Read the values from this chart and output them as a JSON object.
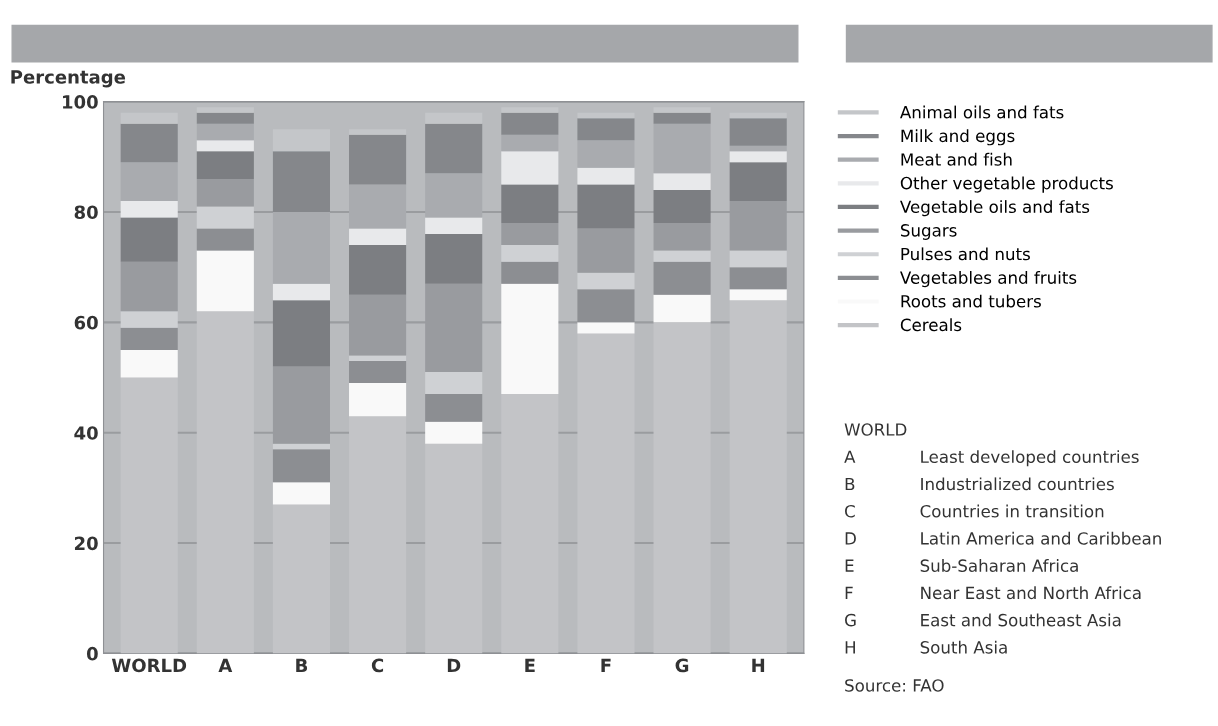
{
  "chart_data": {
    "type": "bar",
    "stacked": true,
    "ylabel": "Percentage",
    "categories": [
      "WORLD",
      "A",
      "B",
      "C",
      "D",
      "E",
      "F",
      "G",
      "H"
    ],
    "series": [
      {
        "name": "Cereals",
        "color": "#c3c4c7",
        "values": [
          50,
          62,
          27,
          43,
          38,
          47,
          58,
          60,
          64
        ]
      },
      {
        "name": "Roots and tubers",
        "color": "#f9f9f9",
        "values": [
          5,
          11,
          4,
          6,
          4,
          20,
          2,
          5,
          2
        ]
      },
      {
        "name": "Vegetables and fruits",
        "color": "#8c8e92",
        "values": [
          4,
          4,
          6,
          4,
          5,
          4,
          6,
          6,
          4
        ]
      },
      {
        "name": "Pulses and nuts",
        "color": "#cfd1d4",
        "values": [
          3,
          4,
          1,
          1,
          4,
          3,
          3,
          2,
          3
        ]
      },
      {
        "name": "Sugars",
        "color": "#999b9f",
        "values": [
          9,
          5,
          14,
          11,
          16,
          4,
          8,
          5,
          9
        ]
      },
      {
        "name": "Vegetable oils and fats",
        "color": "#7c7e82",
        "values": [
          8,
          5,
          12,
          9,
          9,
          7,
          8,
          6,
          7
        ]
      },
      {
        "name": "Other vegetable products",
        "color": "#e8e9eb",
        "values": [
          3,
          2,
          3,
          3,
          3,
          6,
          3,
          3,
          2
        ]
      },
      {
        "name": "Meat and fish",
        "color": "#a9abaf",
        "values": [
          7,
          3,
          13,
          8,
          8,
          3,
          5,
          9,
          1
        ]
      },
      {
        "name": "Milk and eggs",
        "color": "#85878b",
        "values": [
          7,
          2,
          11,
          9,
          9,
          4,
          4,
          2,
          5
        ]
      },
      {
        "name": "Animal oils and fats",
        "color": "#c4c6c9",
        "values": [
          2,
          1,
          4,
          1,
          2,
          1,
          1,
          1,
          1
        ]
      }
    ],
    "ylim": [
      0,
      100
    ],
    "yticks": [
      0,
      20,
      40,
      60,
      80,
      100
    ],
    "grid": "y",
    "legend": "right",
    "annotations": [
      "WORLD",
      "A Least developed countries",
      "B Industrialized countries",
      "C Countries in transition",
      "D Latin America and Caribbean",
      "E Sub-Saharan Africa",
      "F Near East and North Africa",
      "G East and Southeast Asia",
      "H South Asia",
      "Source: FAO"
    ]
  }
}
